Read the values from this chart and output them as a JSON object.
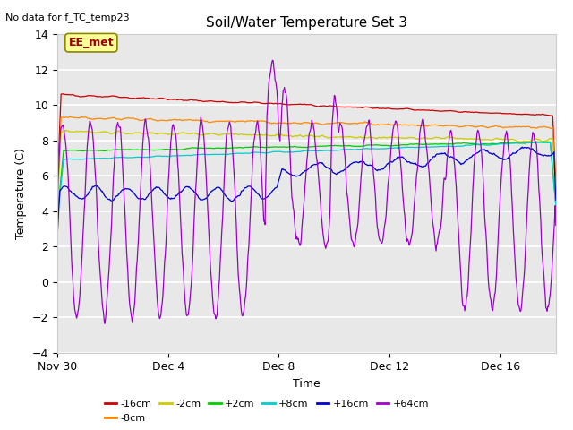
{
  "title": "Soil/Water Temperature Set 3",
  "xlabel": "Time",
  "ylabel": "Temperature (C)",
  "top_left_note": "No data for f_TC_temp23",
  "annotation_box": "EE_met",
  "ylim": [
    -4,
    14
  ],
  "yticks": [
    -4,
    -2,
    0,
    2,
    4,
    6,
    8,
    10,
    12,
    14
  ],
  "xtick_labels": [
    "Nov 30",
    "Dec 4",
    "Dec 8",
    "Dec 12",
    "Dec 16"
  ],
  "xtick_positions": [
    0,
    4,
    8,
    12,
    16
  ],
  "xlim": [
    0,
    18
  ],
  "series": [
    {
      "label": "-16cm",
      "color": "#cc0000"
    },
    {
      "label": "-8cm",
      "color": "#ff8800"
    },
    {
      "label": "-2cm",
      "color": "#cccc00"
    },
    {
      "label": "+2cm",
      "color": "#00cc00"
    },
    {
      "label": "+8cm",
      "color": "#00cccc"
    },
    {
      "label": "+16cm",
      "color": "#0000cc"
    },
    {
      "label": "+64cm",
      "color": "#9900cc"
    }
  ],
  "bg_color": "#e8e8e8",
  "grid_color": "#ffffff",
  "annotation_box_color": "#ffff99",
  "annotation_box_border": "#999900",
  "title_fontsize": 11,
  "axis_fontsize": 9,
  "tick_fontsize": 9,
  "legend_fontsize": 8
}
